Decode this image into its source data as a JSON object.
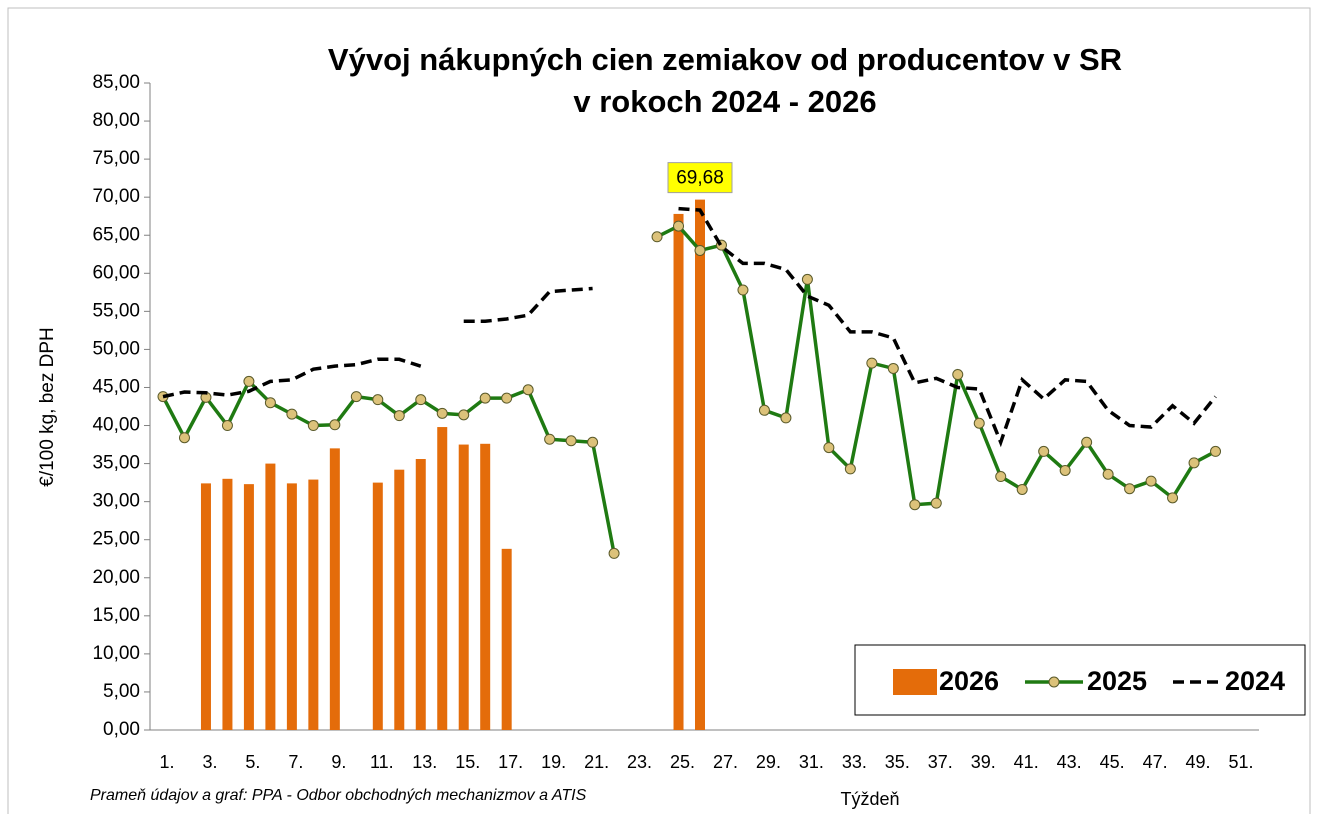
{
  "chart_data": {
    "type": "combo",
    "title": [
      "Vývoj nákupných cien zemiakov od producentov v SR",
      "v rokoch 2024 - 2026"
    ],
    "y_label": "€/100 kg, bez DPH",
    "x_label": "Týždeň",
    "source": "Prameň údajov a graf: PPA - Odbor obchodných mechanizmov a ATIS",
    "legend": "bottom-right",
    "categories": [
      "1.",
      null,
      "3.",
      null,
      "5.",
      null,
      "7.",
      null,
      "9.",
      null,
      "11.",
      null,
      "13.",
      null,
      "15.",
      null,
      "17.",
      null,
      "19.",
      null,
      "21.",
      null,
      "23.",
      null,
      "25.",
      null,
      "27.",
      null,
      "29.",
      null,
      "31.",
      null,
      "33.",
      null,
      "35.",
      null,
      "37.",
      null,
      "39.",
      null,
      "41.",
      null,
      "43.",
      null,
      "45.",
      null,
      "47.",
      null,
      "49.",
      null,
      "51."
    ],
    "ylim": [
      0,
      85
    ],
    "yticks": [
      {
        "value": 0,
        "label": "0,00"
      },
      {
        "value": 5,
        "label": "5,00"
      },
      {
        "value": 10,
        "label": "10,00"
      },
      {
        "value": 15,
        "label": "15,00"
      },
      {
        "value": 20,
        "label": "20,00"
      },
      {
        "value": 25,
        "label": "25,00"
      },
      {
        "value": 30,
        "label": "30,00"
      },
      {
        "value": 35,
        "label": "35,00"
      },
      {
        "value": 40,
        "label": "40,00"
      },
      {
        "value": 45,
        "label": "45,00"
      },
      {
        "value": 50,
        "label": "50,00"
      },
      {
        "value": 55,
        "label": "55,00"
      },
      {
        "value": 60,
        "label": "60,00"
      },
      {
        "value": 65,
        "label": "65,00"
      },
      {
        "value": 70,
        "label": "70,00"
      },
      {
        "value": 75,
        "label": "75,00"
      },
      {
        "value": 80,
        "label": "80,00"
      },
      {
        "value": 85,
        "label": "85,00"
      }
    ],
    "series": [
      {
        "name": "2026",
        "type": "bar",
        "color": "#e46c0a",
        "values": [
          null,
          null,
          32.4,
          33.0,
          32.3,
          35.0,
          32.4,
          32.9,
          37.0,
          null,
          32.5,
          34.2,
          35.6,
          39.8,
          37.5,
          37.6,
          23.8,
          null,
          null,
          null,
          null,
          null,
          null,
          null,
          67.8,
          69.68,
          null,
          null,
          null,
          null,
          null,
          null,
          null,
          null,
          null,
          null,
          null,
          null,
          null,
          null,
          null,
          null,
          null,
          null,
          null,
          null,
          null,
          null,
          null,
          null,
          null
        ],
        "value_labels": [
          null,
          null,
          null,
          null,
          null,
          null,
          null,
          null,
          null,
          null,
          null,
          null,
          null,
          null,
          null,
          null,
          null,
          null,
          null,
          null,
          null,
          null,
          null,
          null,
          null,
          "69,68",
          null,
          null,
          null,
          null,
          null,
          null,
          null,
          null,
          null,
          null,
          null,
          null,
          null,
          null,
          null,
          null,
          null,
          null,
          null,
          null,
          null,
          null,
          null,
          null,
          null
        ]
      },
      {
        "name": "2025",
        "type": "line",
        "color": "#1f7a12",
        "marker_color": "#dcc27a",
        "values": [
          43.8,
          38.4,
          43.7,
          40.0,
          45.8,
          43.0,
          41.5,
          40.0,
          40.1,
          43.8,
          43.4,
          41.3,
          43.4,
          41.6,
          41.4,
          43.6,
          43.6,
          44.7,
          38.2,
          38.0,
          37.8,
          23.2,
          null,
          64.8,
          66.2,
          63.0,
          63.7,
          57.8,
          42.0,
          41.0,
          59.2,
          37.1,
          34.3,
          48.2,
          47.5,
          29.6,
          29.8,
          46.7,
          40.3,
          33.3,
          31.6,
          36.6,
          34.1,
          37.8,
          33.6,
          31.7,
          32.7,
          30.5,
          35.1,
          36.6,
          null
        ]
      },
      {
        "name": "2024",
        "type": "dashed",
        "color": "#000000",
        "values": [
          43.8,
          44.4,
          44.3,
          44.0,
          44.5,
          45.8,
          46.0,
          47.4,
          47.8,
          48.0,
          48.7,
          48.7,
          47.8,
          null,
          53.7,
          53.7,
          54.0,
          54.5,
          57.6,
          57.8,
          58.0,
          null,
          null,
          null,
          68.5,
          68.3,
          63.5,
          61.3,
          61.3,
          60.5,
          57.0,
          55.8,
          52.3,
          52.3,
          51.5,
          45.6,
          46.2,
          45.0,
          44.8,
          37.8,
          46.0,
          43.5,
          46.0,
          45.8,
          42.0,
          40.0,
          39.8,
          42.6,
          40.3,
          43.8,
          null
        ]
      }
    ]
  }
}
